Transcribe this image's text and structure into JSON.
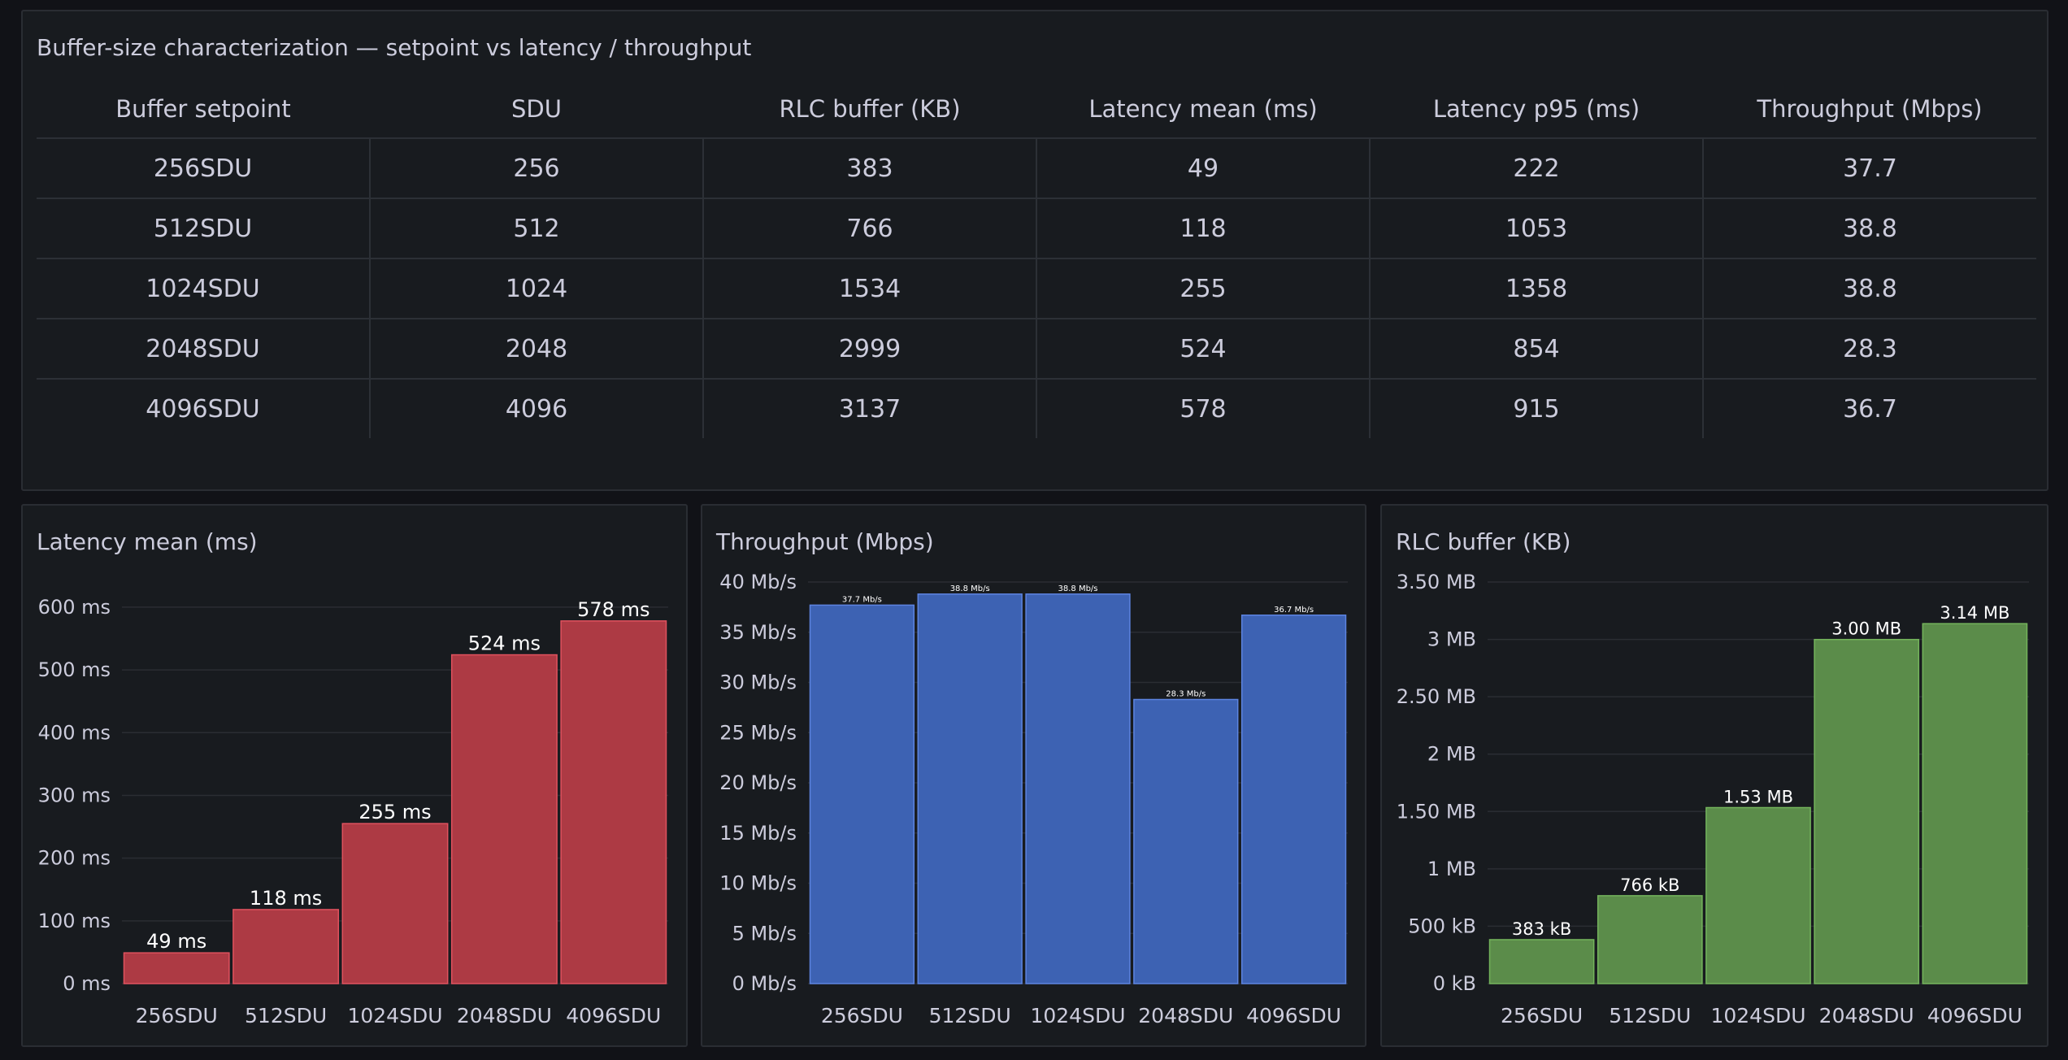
{
  "table_panel": {
    "title": "Buffer-size characterization — setpoint vs latency / throughput",
    "columns": [
      "Buffer setpoint",
      "SDU",
      "RLC buffer (KB)",
      "Latency mean (ms)",
      "Latency p95 (ms)",
      "Throughput (Mbps)"
    ],
    "rows": [
      [
        "256SDU",
        "256",
        "383",
        "49",
        "222",
        "37.7"
      ],
      [
        "512SDU",
        "512",
        "766",
        "118",
        "1053",
        "38.8"
      ],
      [
        "1024SDU",
        "1024",
        "1534",
        "255",
        "1358",
        "38.8"
      ],
      [
        "2048SDU",
        "2048",
        "2999",
        "524",
        "854",
        "28.3"
      ],
      [
        "4096SDU",
        "4096",
        "3137",
        "578",
        "915",
        "36.7"
      ]
    ]
  },
  "chart_data": [
    {
      "type": "bar",
      "title": "Latency mean (ms)",
      "categories": [
        "256SDU",
        "512SDU",
        "1024SDU",
        "2048SDU",
        "4096SDU"
      ],
      "values": [
        49,
        118,
        255,
        524,
        578
      ],
      "value_labels": [
        "49 ms",
        "118 ms",
        "255 ms",
        "524 ms",
        "578 ms"
      ],
      "ylim": [
        0,
        640
      ],
      "yticks": [
        0,
        100,
        200,
        300,
        400,
        500,
        600
      ],
      "ytick_labels": [
        "0 ms",
        "100 ms",
        "200 ms",
        "300 ms",
        "400 ms",
        "500 ms",
        "600 ms"
      ],
      "color": "#ad3a44",
      "border": "#e0525e",
      "grid": true
    },
    {
      "type": "bar",
      "title": "Throughput (Mbps)",
      "categories": [
        "256SDU",
        "512SDU",
        "1024SDU",
        "2048SDU",
        "4096SDU"
      ],
      "values": [
        37.7,
        38.8,
        38.8,
        28.3,
        36.7
      ],
      "value_labels": [
        "37.7 Mb/s",
        "38.8 Mb/s",
        "38.8 Mb/s",
        "28.3 Mb/s",
        "36.7 Mb/s"
      ],
      "ylim": [
        0,
        40
      ],
      "yticks": [
        0,
        5,
        10,
        15,
        20,
        25,
        30,
        35,
        40
      ],
      "ytick_labels": [
        "0 Mb/s",
        "5 Mb/s",
        "10 Mb/s",
        "15 Mb/s",
        "20 Mb/s",
        "25 Mb/s",
        "30 Mb/s",
        "35 Mb/s",
        "40 Mb/s"
      ],
      "color": "#3d62b3",
      "border": "#5d84e0",
      "grid": true
    },
    {
      "type": "bar",
      "title": "RLC buffer (KB)",
      "categories": [
        "256SDU",
        "512SDU",
        "1024SDU",
        "2048SDU",
        "4096SDU"
      ],
      "values": [
        383,
        766,
        1534,
        2999,
        3137
      ],
      "value_labels": [
        "383 kB",
        "766 kB",
        "1.53 MB",
        "3.00 MB",
        "3.14 MB"
      ],
      "ylim": [
        0,
        3500
      ],
      "yticks": [
        0,
        500,
        1000,
        1500,
        2000,
        2500,
        3000,
        3500
      ],
      "ytick_labels": [
        "0 kB",
        "500 kB",
        "1 MB",
        "1.50 MB",
        "2 MB",
        "2.50 MB",
        "3 MB",
        "3.50 MB"
      ],
      "color": "#5b8c4a",
      "border": "#74b45c",
      "grid": true
    }
  ]
}
